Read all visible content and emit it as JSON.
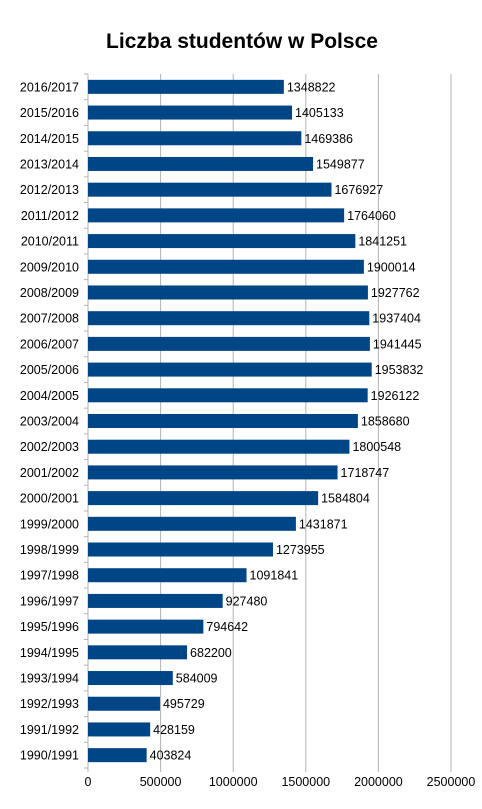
{
  "chart_data": {
    "type": "bar",
    "orientation": "horizontal",
    "title": "Liczba studentów w Polsce",
    "xlabel": "",
    "ylabel": "",
    "categories": [
      "2016/2017",
      "2015/2016",
      "2014/2015",
      "2013/2014",
      "2012/2013",
      "2011/2012",
      "2010/2011",
      "2009/2010",
      "2008/2009",
      "2007/2008",
      "2006/2007",
      "2005/2006",
      "2004/2005",
      "2003/2004",
      "2002/2003",
      "2001/2002",
      "2000/2001",
      "1999/2000",
      "1998/1999",
      "1997/1998",
      "1996/1997",
      "1995/1996",
      "1994/1995",
      "1993/1994",
      "1992/1993",
      "1991/1992",
      "1990/1991"
    ],
    "values": [
      1348822,
      1405133,
      1469386,
      1549877,
      1676927,
      1764060,
      1841251,
      1900014,
      1927762,
      1937404,
      1941445,
      1953832,
      1926122,
      1858680,
      1800548,
      1718747,
      1584804,
      1431871,
      1273955,
      1091841,
      927480,
      794642,
      682200,
      584009,
      495729,
      428159,
      403824
    ],
    "xlim": [
      0,
      2500000
    ],
    "xticks": [
      0,
      500000,
      1000000,
      1500000,
      2000000,
      2500000
    ],
    "grid": true,
    "legend": "none",
    "bar_color": "#004586",
    "grid_color": "#b3b3b3"
  }
}
